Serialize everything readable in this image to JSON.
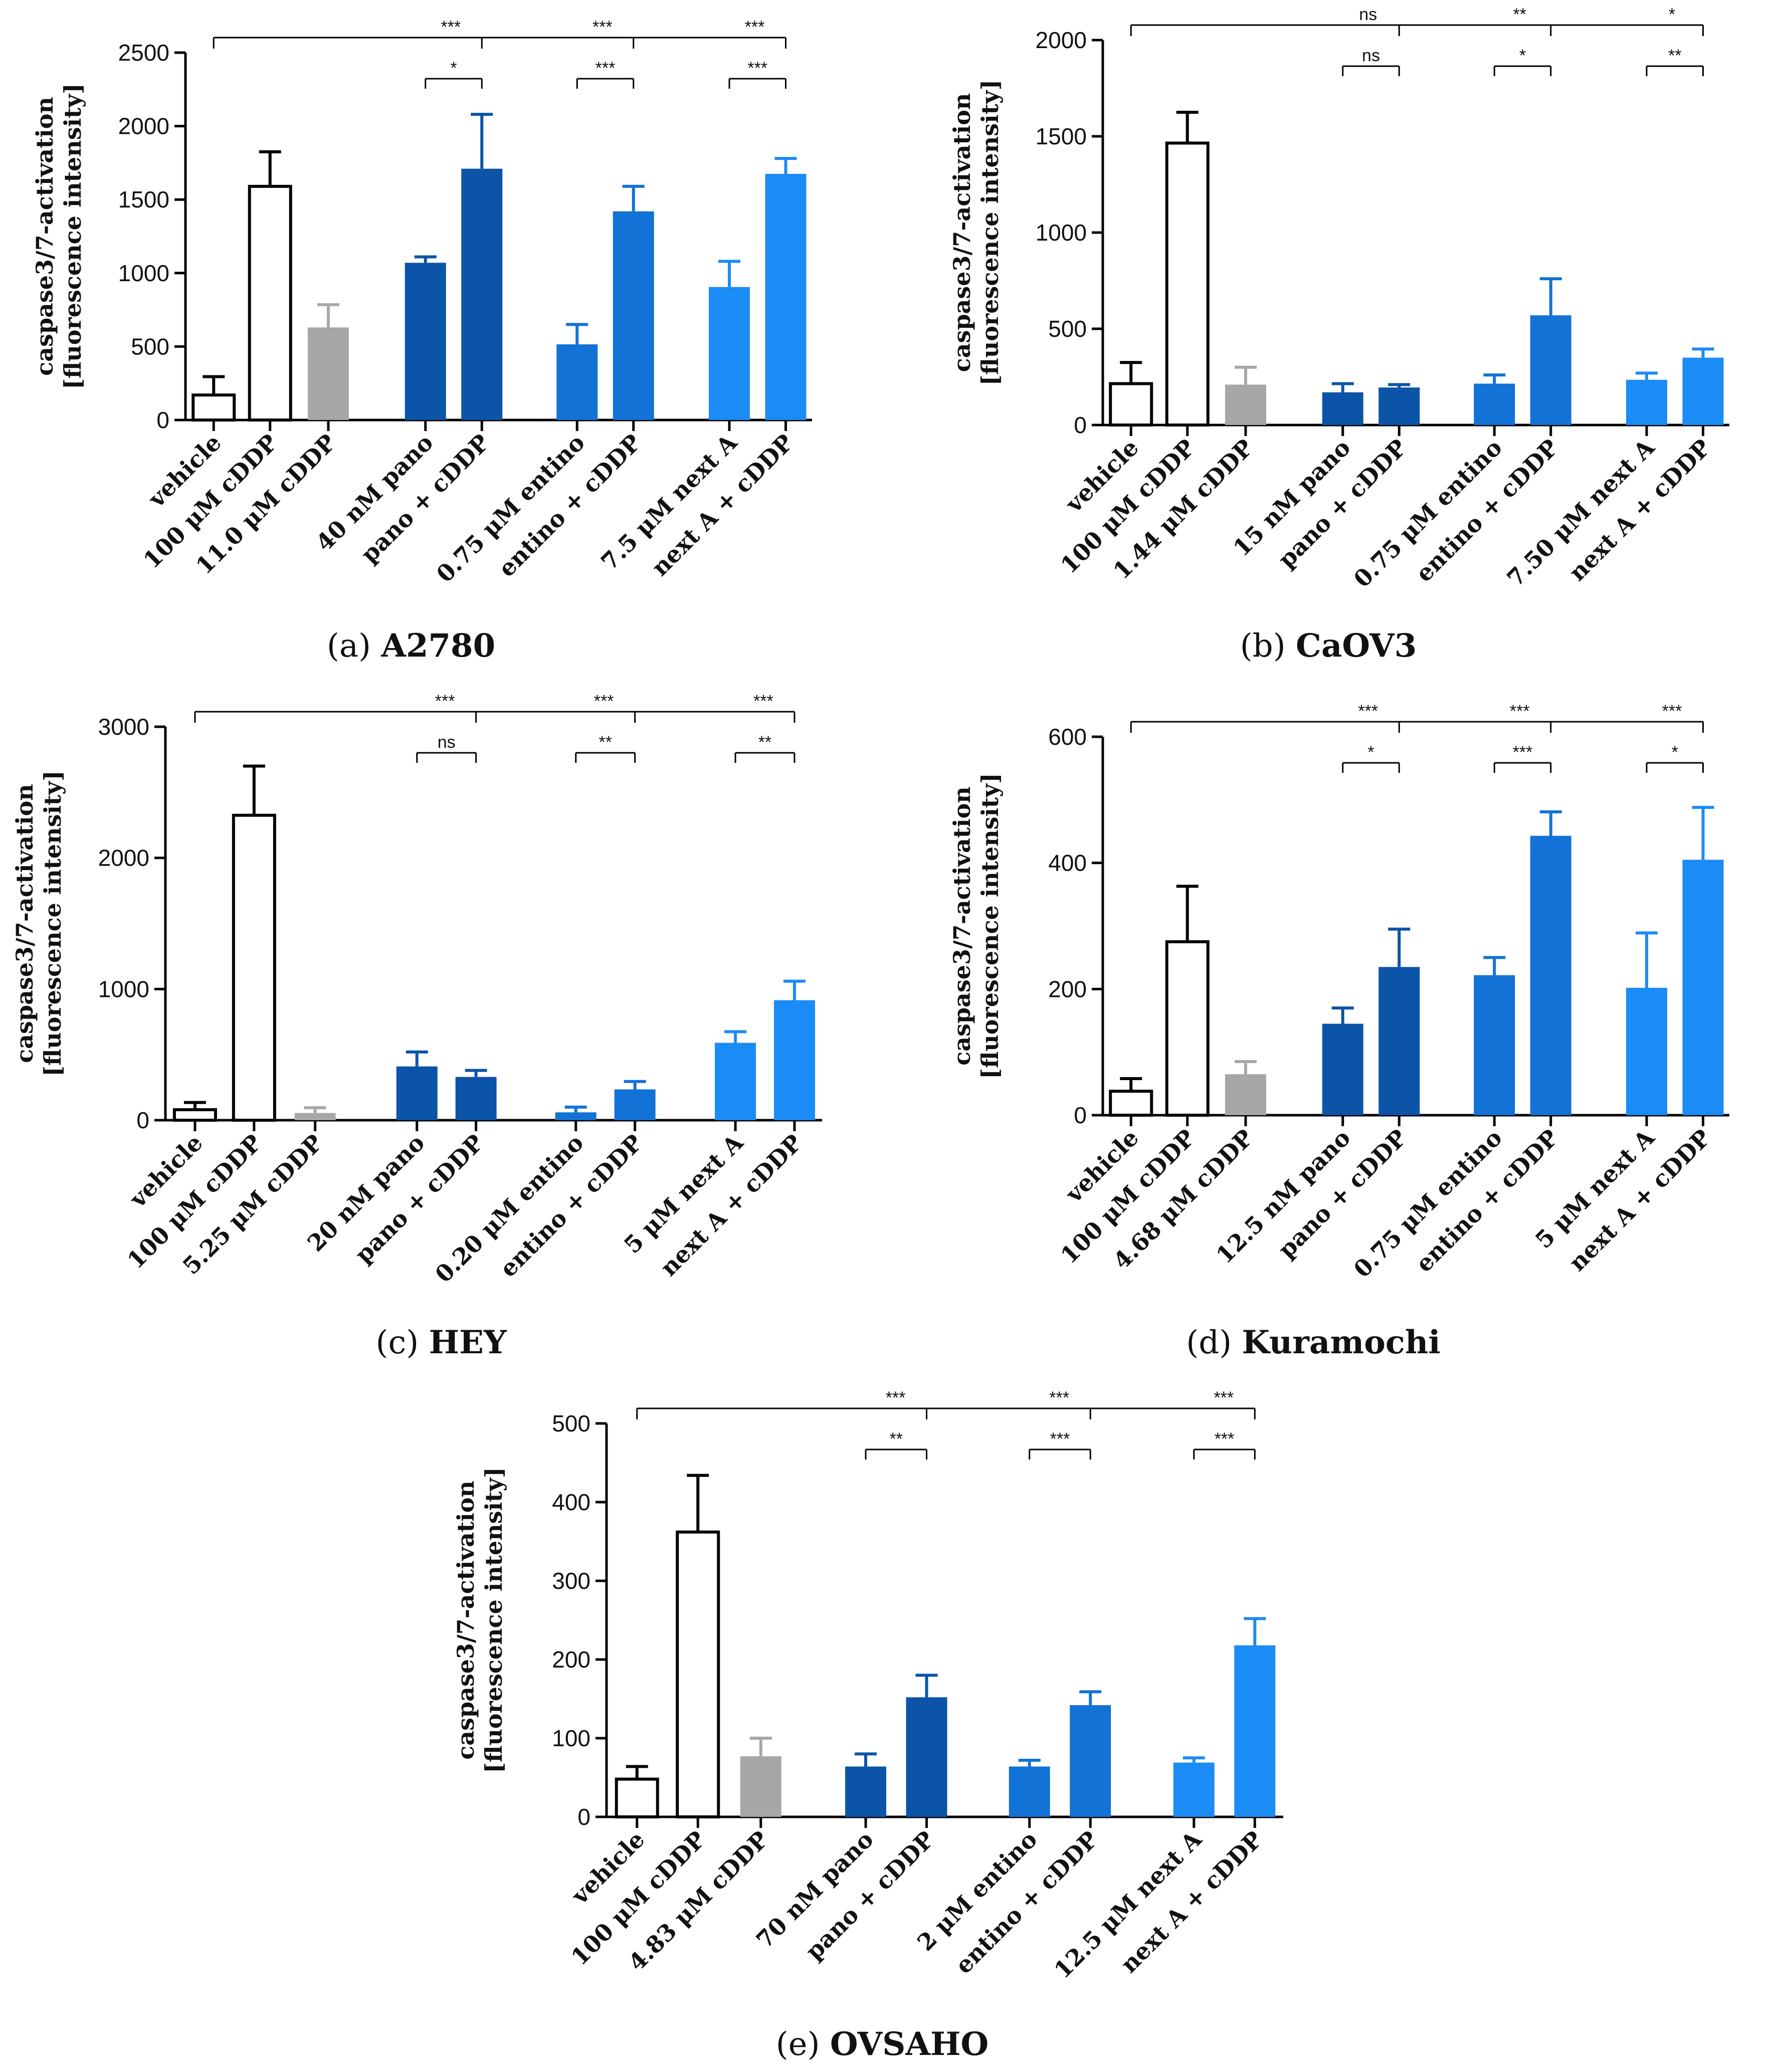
{
  "figure": {
    "colors": {
      "vehicle": "#ffffff",
      "cddp_high": "#ffffff",
      "cddp_low": "#a7a7a7",
      "pano": "#0c54a7",
      "entino": "#1272d6",
      "nextA": "#1b8bf5",
      "stroke": "#000000"
    }
  },
  "chart_data": [
    {
      "type": "bar",
      "panel": "a",
      "caption_letter": "(a)",
      "caption_name": "A2780",
      "ylabel_line1": "caspase3/7-activation",
      "ylabel_line2": "[fluorescence intensity]",
      "ylim": [
        0,
        2500
      ],
      "yticks": [
        "0",
        "500",
        "1000",
        "1500",
        "2000",
        "2500"
      ],
      "ytick_values": [
        0,
        500,
        1000,
        1500,
        2000,
        2500
      ],
      "categories": [
        "vehicle",
        "100 μM cDDP",
        "11.0 μM cDDP",
        "40 nM pano",
        "pano + cDDP",
        "0.75 μM entino",
        "entino + cDDP",
        "7.5 μM next A",
        "next A + cDDP"
      ],
      "values": [
        170,
        1590,
        630,
        1070,
        1710,
        515,
        1420,
        905,
        1675
      ],
      "errors": [
        125,
        235,
        155,
        40,
        370,
        135,
        170,
        175,
        105
      ],
      "colors": [
        "vehicle",
        "cddp_high",
        "cddp_low",
        "pano",
        "pano",
        "entino",
        "entino",
        "nextA",
        "nextA"
      ],
      "sig_top": [
        "***",
        "***",
        "***"
      ],
      "sig_pairs": [
        "*",
        "***",
        "***"
      ]
    },
    {
      "type": "bar",
      "panel": "b",
      "caption_letter": "(b)",
      "caption_name": "CaOV3",
      "ylabel_line1": "caspase3/7-activation",
      "ylabel_line2": "[fluorescence intensity]",
      "ylim": [
        0,
        2000
      ],
      "yticks": [
        "0",
        "500",
        "1000",
        "1500",
        "2000"
      ],
      "ytick_values": [
        0,
        500,
        1000,
        1500,
        2000
      ],
      "categories": [
        "vehicle",
        "100 μM cDDP",
        "1.44 μM cDDP",
        "15 nM pano",
        "pano + cDDP",
        "0.75 μM entino",
        "entino + cDDP",
        "7.50 μM next A",
        "next A + cDDP"
      ],
      "values": [
        215,
        1465,
        210,
        170,
        195,
        215,
        570,
        235,
        350
      ],
      "errors": [
        110,
        160,
        90,
        45,
        15,
        45,
        190,
        35,
        45
      ],
      "colors": [
        "vehicle",
        "cddp_high",
        "cddp_low",
        "pano",
        "pano",
        "entino",
        "entino",
        "nextA",
        "nextA"
      ],
      "sig_top": [
        "ns",
        "**",
        "*"
      ],
      "sig_pairs": [
        "ns",
        "*",
        "**"
      ]
    },
    {
      "type": "bar",
      "panel": "c",
      "caption_letter": "(c)",
      "caption_name": "HEY",
      "ylabel_line1": "caspase3/7-activation",
      "ylabel_line2": "[fluorescence intensity]",
      "ylim": [
        0,
        3000
      ],
      "yticks": [
        "0",
        "1000",
        "2000",
        "3000"
      ],
      "ytick_values": [
        0,
        1000,
        2000,
        3000
      ],
      "categories": [
        "vehicle",
        "100 μM cDDP",
        "5.25 μM cDDP",
        "20 nM pano",
        "pano + cDDP",
        "0.20 μM entino",
        "entino + cDDP",
        "5 μM next A",
        "next A + cDDP"
      ],
      "values": [
        80,
        2325,
        55,
        410,
        330,
        60,
        235,
        590,
        915
      ],
      "errors": [
        55,
        375,
        40,
        110,
        50,
        40,
        60,
        85,
        145
      ],
      "colors": [
        "vehicle",
        "cddp_high",
        "cddp_low",
        "pano",
        "pano",
        "entino",
        "entino",
        "nextA",
        "nextA"
      ],
      "sig_top": [
        "***",
        "***",
        "***"
      ],
      "sig_pairs": [
        "ns",
        "**",
        "**"
      ]
    },
    {
      "type": "bar",
      "panel": "d",
      "caption_letter": "(d)",
      "caption_name": "Kuramochi",
      "ylabel_line1": "caspase3/7-activation",
      "ylabel_line2": "[fluorescence intensity]",
      "ylim": [
        0,
        600
      ],
      "yticks": [
        "0",
        "200",
        "400",
        "600"
      ],
      "ytick_values": [
        0,
        200,
        400,
        600
      ],
      "categories": [
        "vehicle",
        "100 μM cDDP",
        "4.68 μM cDDP",
        "12.5 nM pano",
        "pano + cDDP",
        "0.75 μM entino",
        "entino + cDDP",
        "5 μM next A",
        "next A + cDDP"
      ],
      "values": [
        38,
        275,
        65,
        145,
        235,
        222,
        443,
        202,
        405
      ],
      "errors": [
        20,
        88,
        20,
        25,
        60,
        28,
        38,
        87,
        83
      ],
      "colors": [
        "vehicle",
        "cddp_high",
        "cddp_low",
        "pano",
        "pano",
        "entino",
        "entino",
        "nextA",
        "nextA"
      ],
      "sig_top": [
        "***",
        "***",
        "***"
      ],
      "sig_pairs": [
        "*",
        "***",
        "*"
      ]
    },
    {
      "type": "bar",
      "panel": "e",
      "caption_letter": "(e)",
      "caption_name": "OVSAHO",
      "ylabel_line1": "caspase3/7-activation",
      "ylabel_line2": "[fluorescence intensity]",
      "ylim": [
        0,
        500
      ],
      "yticks": [
        "0",
        "100",
        "200",
        "300",
        "400",
        "500"
      ],
      "ytick_values": [
        0,
        100,
        200,
        300,
        400,
        500
      ],
      "categories": [
        "vehicle",
        "100 μM cDDP",
        "4.83 μM cDDP",
        "70 nM pano",
        "pano + cDDP",
        "2 μM entino",
        "entino + cDDP",
        "12.5 μM next A",
        "next A + cDDP"
      ],
      "values": [
        48,
        362,
        77,
        64,
        152,
        64,
        142,
        69,
        218
      ],
      "errors": [
        16,
        72,
        23,
        16,
        28,
        8,
        17,
        6,
        34
      ],
      "colors": [
        "vehicle",
        "cddp_high",
        "cddp_low",
        "pano",
        "pano",
        "entino",
        "entino",
        "nextA",
        "nextA"
      ],
      "sig_top": [
        "***",
        "***",
        "***"
      ],
      "sig_pairs": [
        "**",
        "***",
        "***"
      ]
    }
  ]
}
